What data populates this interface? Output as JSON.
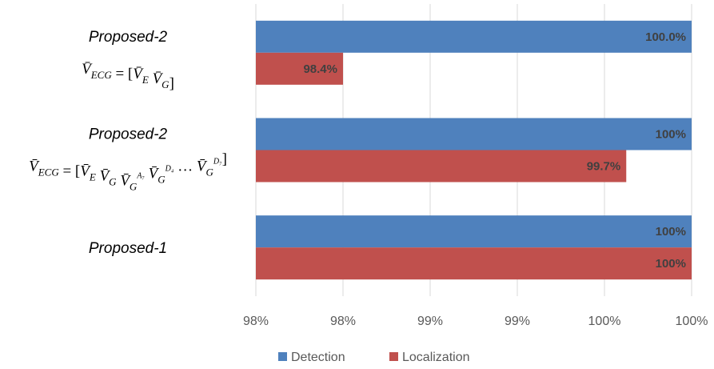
{
  "chart_data": {
    "type": "bar",
    "orientation": "horizontal",
    "categories": [
      {
        "name": "Proposed-2",
        "formula": [
          {
            "t": "V̄",
            "sub": "ECG"
          },
          {
            "t": " = [",
            "up": true
          },
          {
            "t": "V̄",
            "sub": "E"
          },
          {
            "t": " "
          },
          {
            "t": "V̄",
            "sub": "G"
          },
          {
            "t": "]",
            "up": true
          }
        ]
      },
      {
        "name": "Proposed-2",
        "formula": [
          {
            "t": "V̄",
            "sub": "ECG"
          },
          {
            "t": " = [",
            "up": true
          },
          {
            "t": "V̄",
            "sub": "E"
          },
          {
            "t": " "
          },
          {
            "t": "V̄",
            "sub": "G"
          },
          {
            "t": "  "
          },
          {
            "t": "V̄",
            "sub": "G",
            "sup": "A₇"
          },
          {
            "t": " "
          },
          {
            "t": "V̄",
            "sub": "G",
            "sup": "D₄"
          },
          {
            "t": " … ",
            "up": true
          },
          {
            "t": "V̄",
            "sub": "G",
            "sup": "D₇"
          },
          {
            "t": "]",
            "up": true
          }
        ]
      },
      {
        "name": "Proposed-1",
        "formula": []
      }
    ],
    "series": [
      {
        "name": "Detection",
        "color": "#4F81BD",
        "values": [
          100.0,
          100.0,
          100.0
        ],
        "labels": [
          "100.0%",
          "100%",
          "100%"
        ]
      },
      {
        "name": "Localization",
        "color": "#C0504D",
        "values": [
          98.4,
          99.7,
          100.0
        ],
        "labels": [
          "98.4%",
          "99.7%",
          "100%"
        ]
      }
    ],
    "xlim": [
      98.0,
      100.0
    ],
    "xticks": [
      98.0,
      98.4,
      98.8,
      99.2,
      99.6,
      100.0
    ],
    "xtick_labels": [
      "98%",
      "98%",
      "99%",
      "99%",
      "100%",
      "100%"
    ],
    "grid": true,
    "legend": "bottom"
  }
}
